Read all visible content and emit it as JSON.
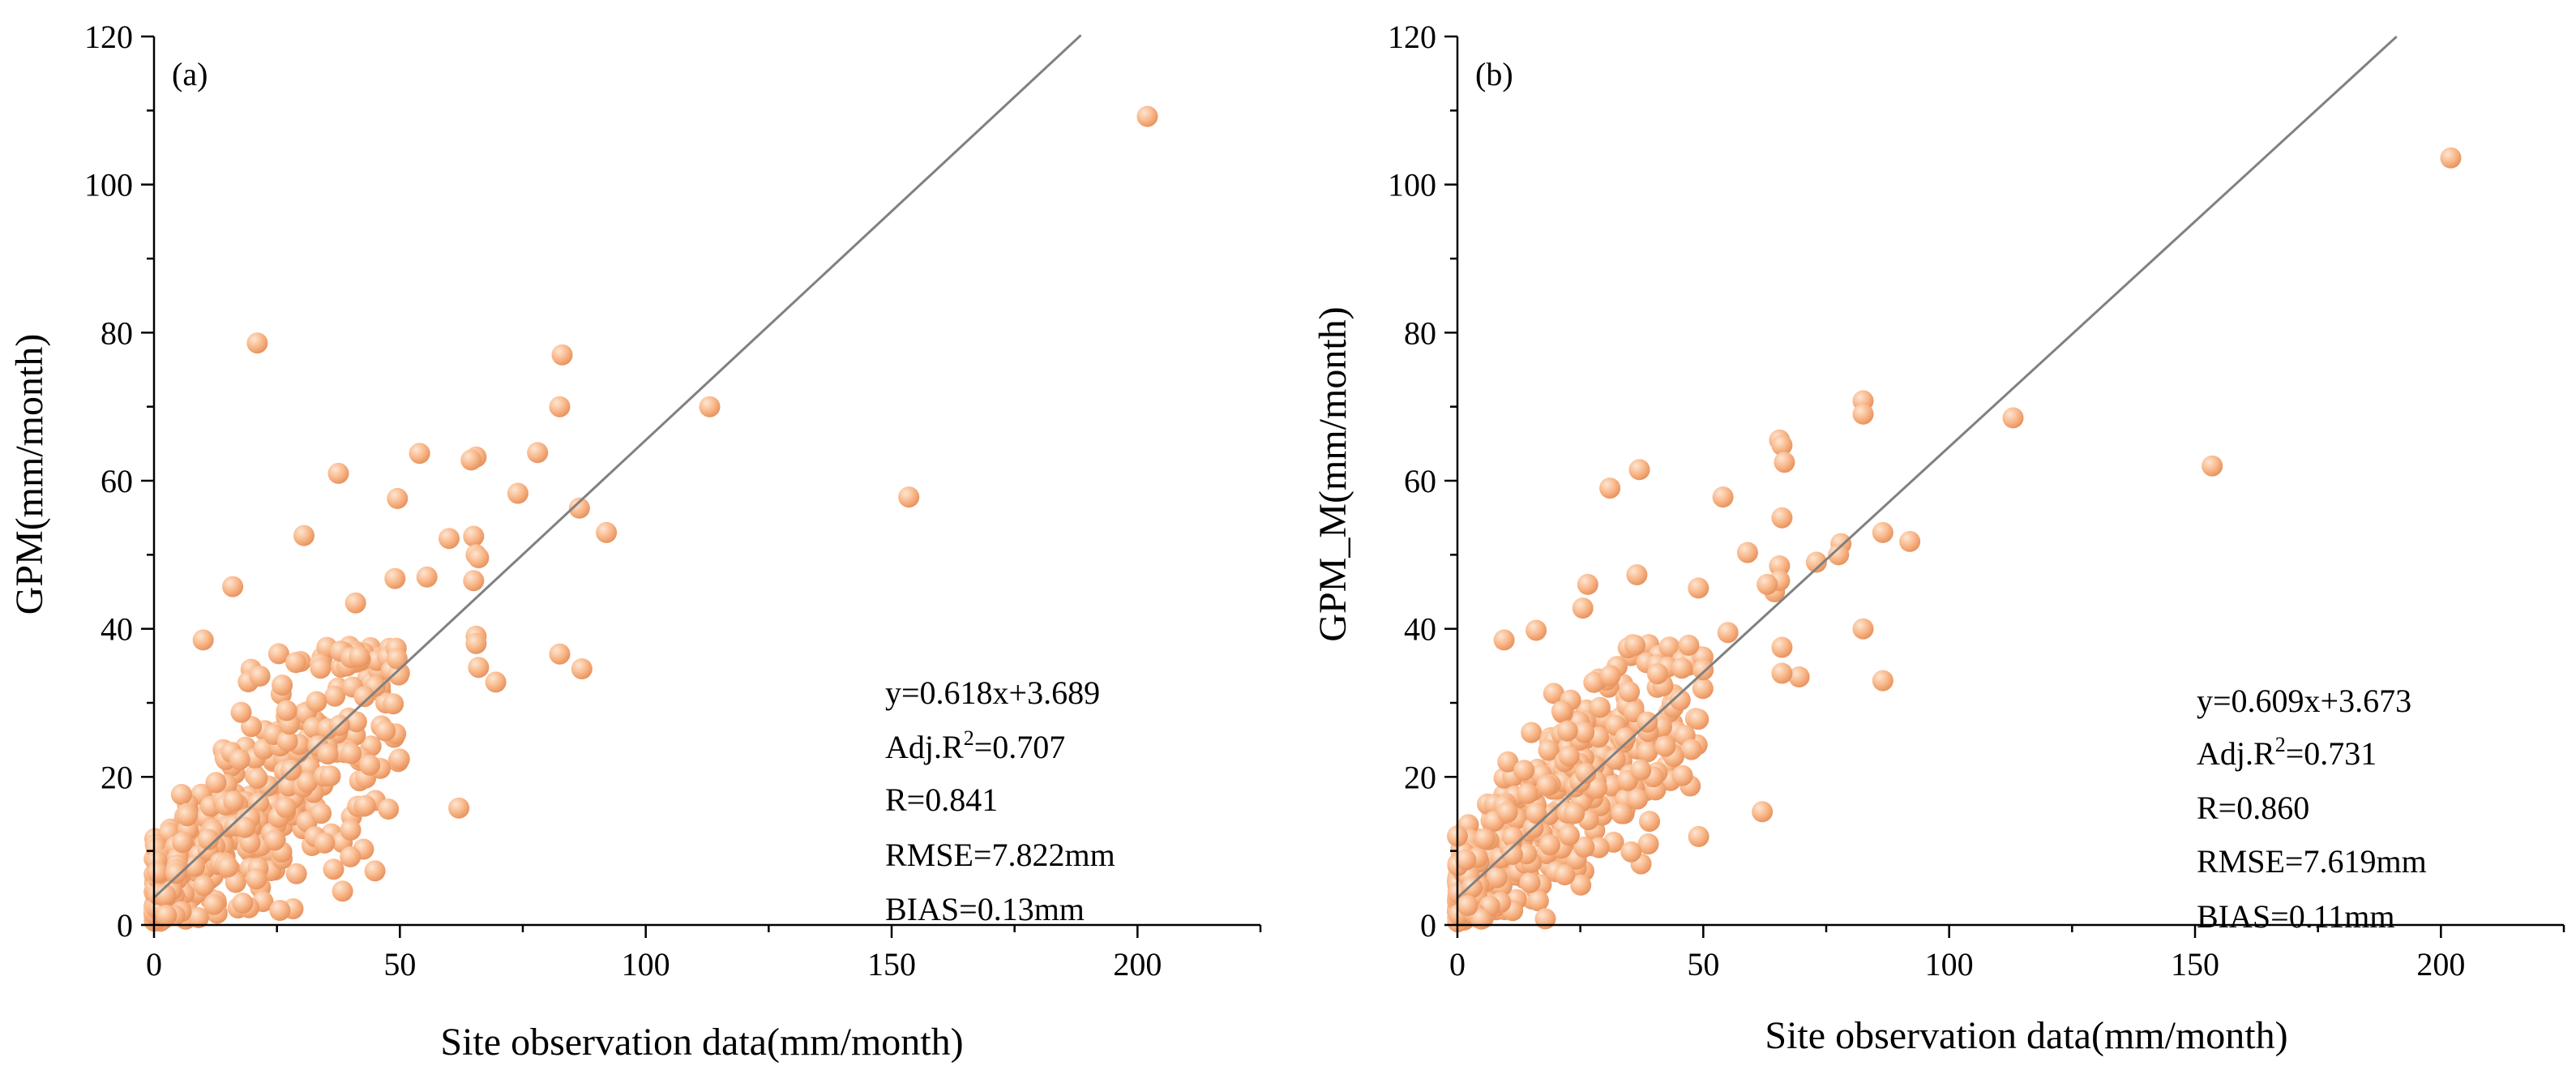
{
  "colors": {
    "point_fill": "#f9b98c",
    "point_highlight": "#fde6d3",
    "point_shadow": "#e8935e",
    "fit_line": "#808080",
    "axis": "#000000"
  },
  "chart_data": [
    {
      "type": "scatter",
      "panel": "(a)",
      "xlabel": "Site observation data(mm/month)",
      "ylabel": "GPM(mm/month)",
      "xlim": [
        0,
        225
      ],
      "ylim": [
        0,
        120
      ],
      "xticks": [
        0,
        50,
        100,
        150,
        200
      ],
      "yticks": [
        0,
        20,
        40,
        60,
        80,
        100,
        120
      ],
      "fit": {
        "slope": 0.618,
        "intercept": 3.689,
        "x_end": 188.5
      },
      "stats": {
        "equation": "y=0.618x+3.689",
        "adjr2_prefix": "Adj.R",
        "adjr2_sup": "2",
        "adjr2_value": "=0.707",
        "r": "R=0.841",
        "rmse": "RMSE=7.822mm",
        "bias": "BIAS=0.13mm"
      },
      "outliers": [
        [
          202,
          109.2
        ],
        [
          113,
          70
        ],
        [
          153.5,
          57.8
        ],
        [
          83,
          77
        ],
        [
          82.5,
          70
        ],
        [
          21,
          78.6
        ],
        [
          86.5,
          56.3
        ],
        [
          92,
          53
        ],
        [
          78,
          63.8
        ],
        [
          74,
          58.3
        ],
        [
          65.5,
          63.2
        ],
        [
          64.5,
          62.8
        ],
        [
          54,
          63.7
        ],
        [
          37.5,
          61
        ],
        [
          49.5,
          57.6
        ],
        [
          60,
          52.2
        ],
        [
          65,
          52.5
        ],
        [
          65.5,
          50
        ],
        [
          66,
          49.6
        ],
        [
          69.5,
          32.8
        ],
        [
          66,
          34.8
        ],
        [
          82.5,
          36.6
        ],
        [
          87,
          34.6
        ],
        [
          62,
          15.8
        ],
        [
          30.5,
          52.6
        ],
        [
          16,
          45.7
        ],
        [
          55.5,
          47
        ],
        [
          49,
          46.8
        ],
        [
          65,
          46.5
        ],
        [
          10,
          38.5
        ],
        [
          41,
          43.5
        ],
        [
          65.5,
          39
        ],
        [
          65.5,
          38
        ]
      ],
      "cluster": {
        "seed": 12345,
        "count": 480,
        "x_max": 50,
        "y_max": 38,
        "slope": 0.618,
        "intercept": 3.689,
        "sd_base": 3.5,
        "sd_scale": 0.14
      }
    },
    {
      "type": "scatter",
      "panel": "(b)",
      "xlabel": "Site observation data(mm/month)",
      "ylabel": "GPM_M(mm/month)",
      "xlim": [
        0,
        225
      ],
      "ylim": [
        0,
        120
      ],
      "xticks": [
        0,
        50,
        100,
        150,
        200
      ],
      "yticks": [
        0,
        20,
        40,
        60,
        80,
        100,
        120
      ],
      "fit": {
        "slope": 0.609,
        "intercept": 3.673,
        "x_end": 191
      },
      "stats": {
        "equation": "y=0.609x+3.673",
        "adjr2_prefix": "Adj.R",
        "adjr2_sup": "2",
        "adjr2_value": "=0.731",
        "r": "R=0.860",
        "rmse": "RMSE=7.619mm",
        "bias": "BIAS=0.11mm"
      },
      "outliers": [
        [
          202,
          103.6
        ],
        [
          113,
          68.5
        ],
        [
          153.5,
          62
        ],
        [
          82.5,
          70.8
        ],
        [
          82.5,
          69
        ],
        [
          65.5,
          65.5
        ],
        [
          66,
          64.8
        ],
        [
          66.5,
          62.5
        ],
        [
          31,
          59
        ],
        [
          37,
          61.5
        ],
        [
          54,
          57.8
        ],
        [
          66,
          55
        ],
        [
          92,
          51.8
        ],
        [
          86.5,
          53
        ],
        [
          78,
          51.5
        ],
        [
          77.5,
          50
        ],
        [
          73,
          49
        ],
        [
          65.5,
          48.5
        ],
        [
          59,
          50.3
        ],
        [
          64.5,
          45
        ],
        [
          65.5,
          46.5
        ],
        [
          63,
          46
        ],
        [
          36.5,
          47.3
        ],
        [
          26.5,
          46
        ],
        [
          82.5,
          40
        ],
        [
          86.5,
          33
        ],
        [
          69.5,
          33.5
        ],
        [
          66,
          34
        ],
        [
          62,
          15.3
        ],
        [
          9.5,
          38.5
        ],
        [
          16,
          39.8
        ],
        [
          25.5,
          42.8
        ],
        [
          55,
          39.5
        ],
        [
          49,
          45.5
        ],
        [
          66,
          37.5
        ]
      ],
      "cluster": {
        "seed": 98765,
        "count": 480,
        "x_max": 50,
        "y_max": 38,
        "slope": 0.609,
        "intercept": 3.673,
        "sd_base": 3.5,
        "sd_scale": 0.14
      }
    }
  ]
}
